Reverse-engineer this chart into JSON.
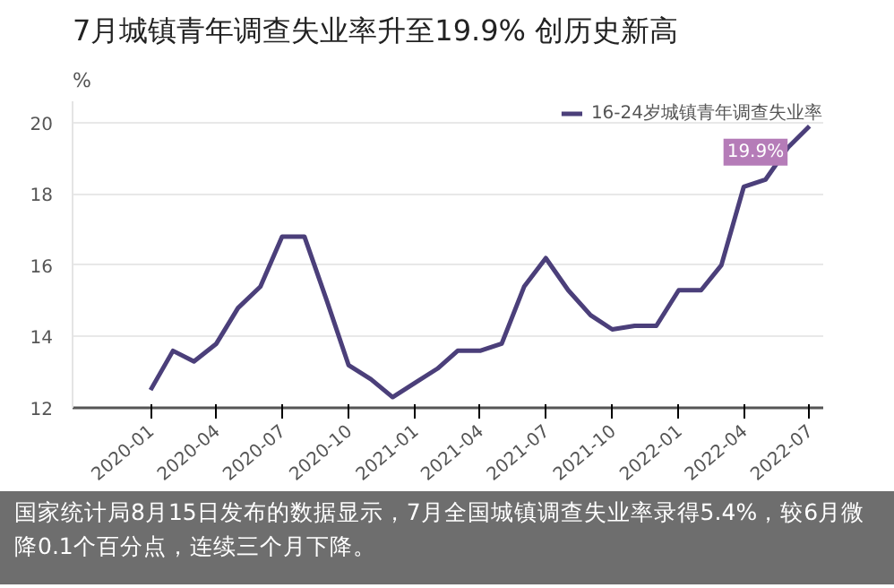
{
  "chart_data": {
    "type": "line",
    "title": "7月城镇青年调查失业率升至19.9% 创历史新高",
    "ylabel": "%",
    "x": [
      "2020-01",
      "2020-02",
      "2020-03",
      "2020-04",
      "2020-05",
      "2020-06",
      "2020-07",
      "2020-08",
      "2020-09",
      "2020-10",
      "2020-11",
      "2020-12",
      "2021-01",
      "2021-02",
      "2021-03",
      "2021-04",
      "2021-05",
      "2021-06",
      "2021-07",
      "2021-08",
      "2021-09",
      "2021-10",
      "2021-11",
      "2021-12",
      "2022-01",
      "2022-02",
      "2022-03",
      "2022-04",
      "2022-05",
      "2022-06",
      "2022-07"
    ],
    "series": [
      {
        "name": "16-24岁城镇青年调查失业率",
        "color": "#4b3f7a",
        "values": [
          12.5,
          13.6,
          13.3,
          13.8,
          14.8,
          15.4,
          16.8,
          16.8,
          15.0,
          13.2,
          12.8,
          12.3,
          12.7,
          13.1,
          13.6,
          13.6,
          13.8,
          15.4,
          16.2,
          15.3,
          14.6,
          14.2,
          14.3,
          14.3,
          15.3,
          15.3,
          16.0,
          18.2,
          18.4,
          19.3,
          19.9
        ]
      }
    ],
    "xlim": [
      "2019-09-15",
      "2022-07-20"
    ],
    "xticks": [
      "2020-01",
      "2020-04",
      "2020-07",
      "2020-10",
      "2021-01",
      "2021-04",
      "2021-07",
      "2021-10",
      "2022-01",
      "2022-04",
      "2022-07"
    ],
    "ylim": [
      12,
      20.6
    ],
    "yticks": [
      12,
      14,
      16,
      18,
      20
    ],
    "grid": "y",
    "legend": "top right",
    "marker": "none",
    "line_style": "solid",
    "annotations": [
      {
        "text": "19.9%",
        "x": "2022-07",
        "y": 19.9
      },
      "国家统计局8月15日发布的数据显示，7月全国城镇调查失业率录得5.4%，较6月微降0.1个百分点，连续三个月下降。"
    ]
  }
}
